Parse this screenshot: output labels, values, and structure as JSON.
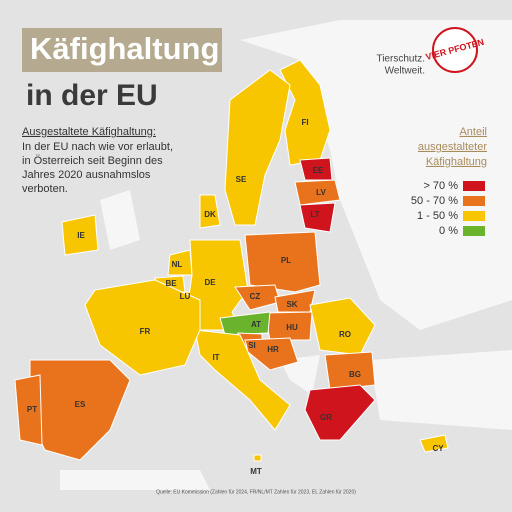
{
  "header": {
    "title": "Käfighaltung",
    "subtitle": "in der EU",
    "logo": "VIER PFOTEN",
    "tagline": [
      "Tierschutz.",
      "Weltweit."
    ]
  },
  "description": {
    "heading": "Ausgestaltete Käfighaltung:",
    "lines": [
      "In der EU nach wie vor erlaubt,",
      "in Österreich seit Beginn des",
      "Jahres 2020 ausnahmslos",
      "verboten."
    ]
  },
  "legend": {
    "title": [
      "Anteil",
      "ausgestalteter",
      "Käfighaltung"
    ],
    "items": [
      {
        "label": "> 70 %",
        "color": "#d0141e"
      },
      {
        "label": "50 - 70 %",
        "color": "#e8731c"
      },
      {
        "label": "1 - 50 %",
        "color": "#f7c600"
      },
      {
        "label": "0 %",
        "color": "#6ab42d"
      }
    ]
  },
  "countries": [
    {
      "label": "FI",
      "color": "#f7c600"
    },
    {
      "label": "SE",
      "color": "#f7c600"
    },
    {
      "label": "DK",
      "color": "#f7c600"
    },
    {
      "label": "EE",
      "color": "#d0141e"
    },
    {
      "label": "LV",
      "color": "#e8731c"
    },
    {
      "label": "LT",
      "color": "#d0141e"
    },
    {
      "label": "IE",
      "color": "#f7c600"
    },
    {
      "label": "NL",
      "color": "#f7c600"
    },
    {
      "label": "BE",
      "color": "#f7c600"
    },
    {
      "label": "LU",
      "color": "#f7c600"
    },
    {
      "label": "DE",
      "color": "#f7c600"
    },
    {
      "label": "PL",
      "color": "#e8731c"
    },
    {
      "label": "CZ",
      "color": "#e8731c"
    },
    {
      "label": "SK",
      "color": "#e8731c"
    },
    {
      "label": "HU",
      "color": "#e8731c"
    },
    {
      "label": "AT",
      "color": "#6ab42d"
    },
    {
      "label": "SI",
      "color": "#e8731c"
    },
    {
      "label": "HR",
      "color": "#e8731c"
    },
    {
      "label": "RO",
      "color": "#f7c600"
    },
    {
      "label": "BG",
      "color": "#e8731c"
    },
    {
      "label": "GR",
      "color": "#d0141e"
    },
    {
      "label": "IT",
      "color": "#f7c600"
    },
    {
      "label": "FR",
      "color": "#f7c600"
    },
    {
      "label": "ES",
      "color": "#e8731c"
    },
    {
      "label": "PT",
      "color": "#e8731c"
    },
    {
      "label": "MT",
      "color": "#f7c600"
    },
    {
      "label": "CY",
      "color": "#f7c600"
    }
  ],
  "source": "Quelle: EU Kommission (Zahlen für 2024, FR/NL/MT Zahlen für 2023, EL Zahlen für 2020)"
}
